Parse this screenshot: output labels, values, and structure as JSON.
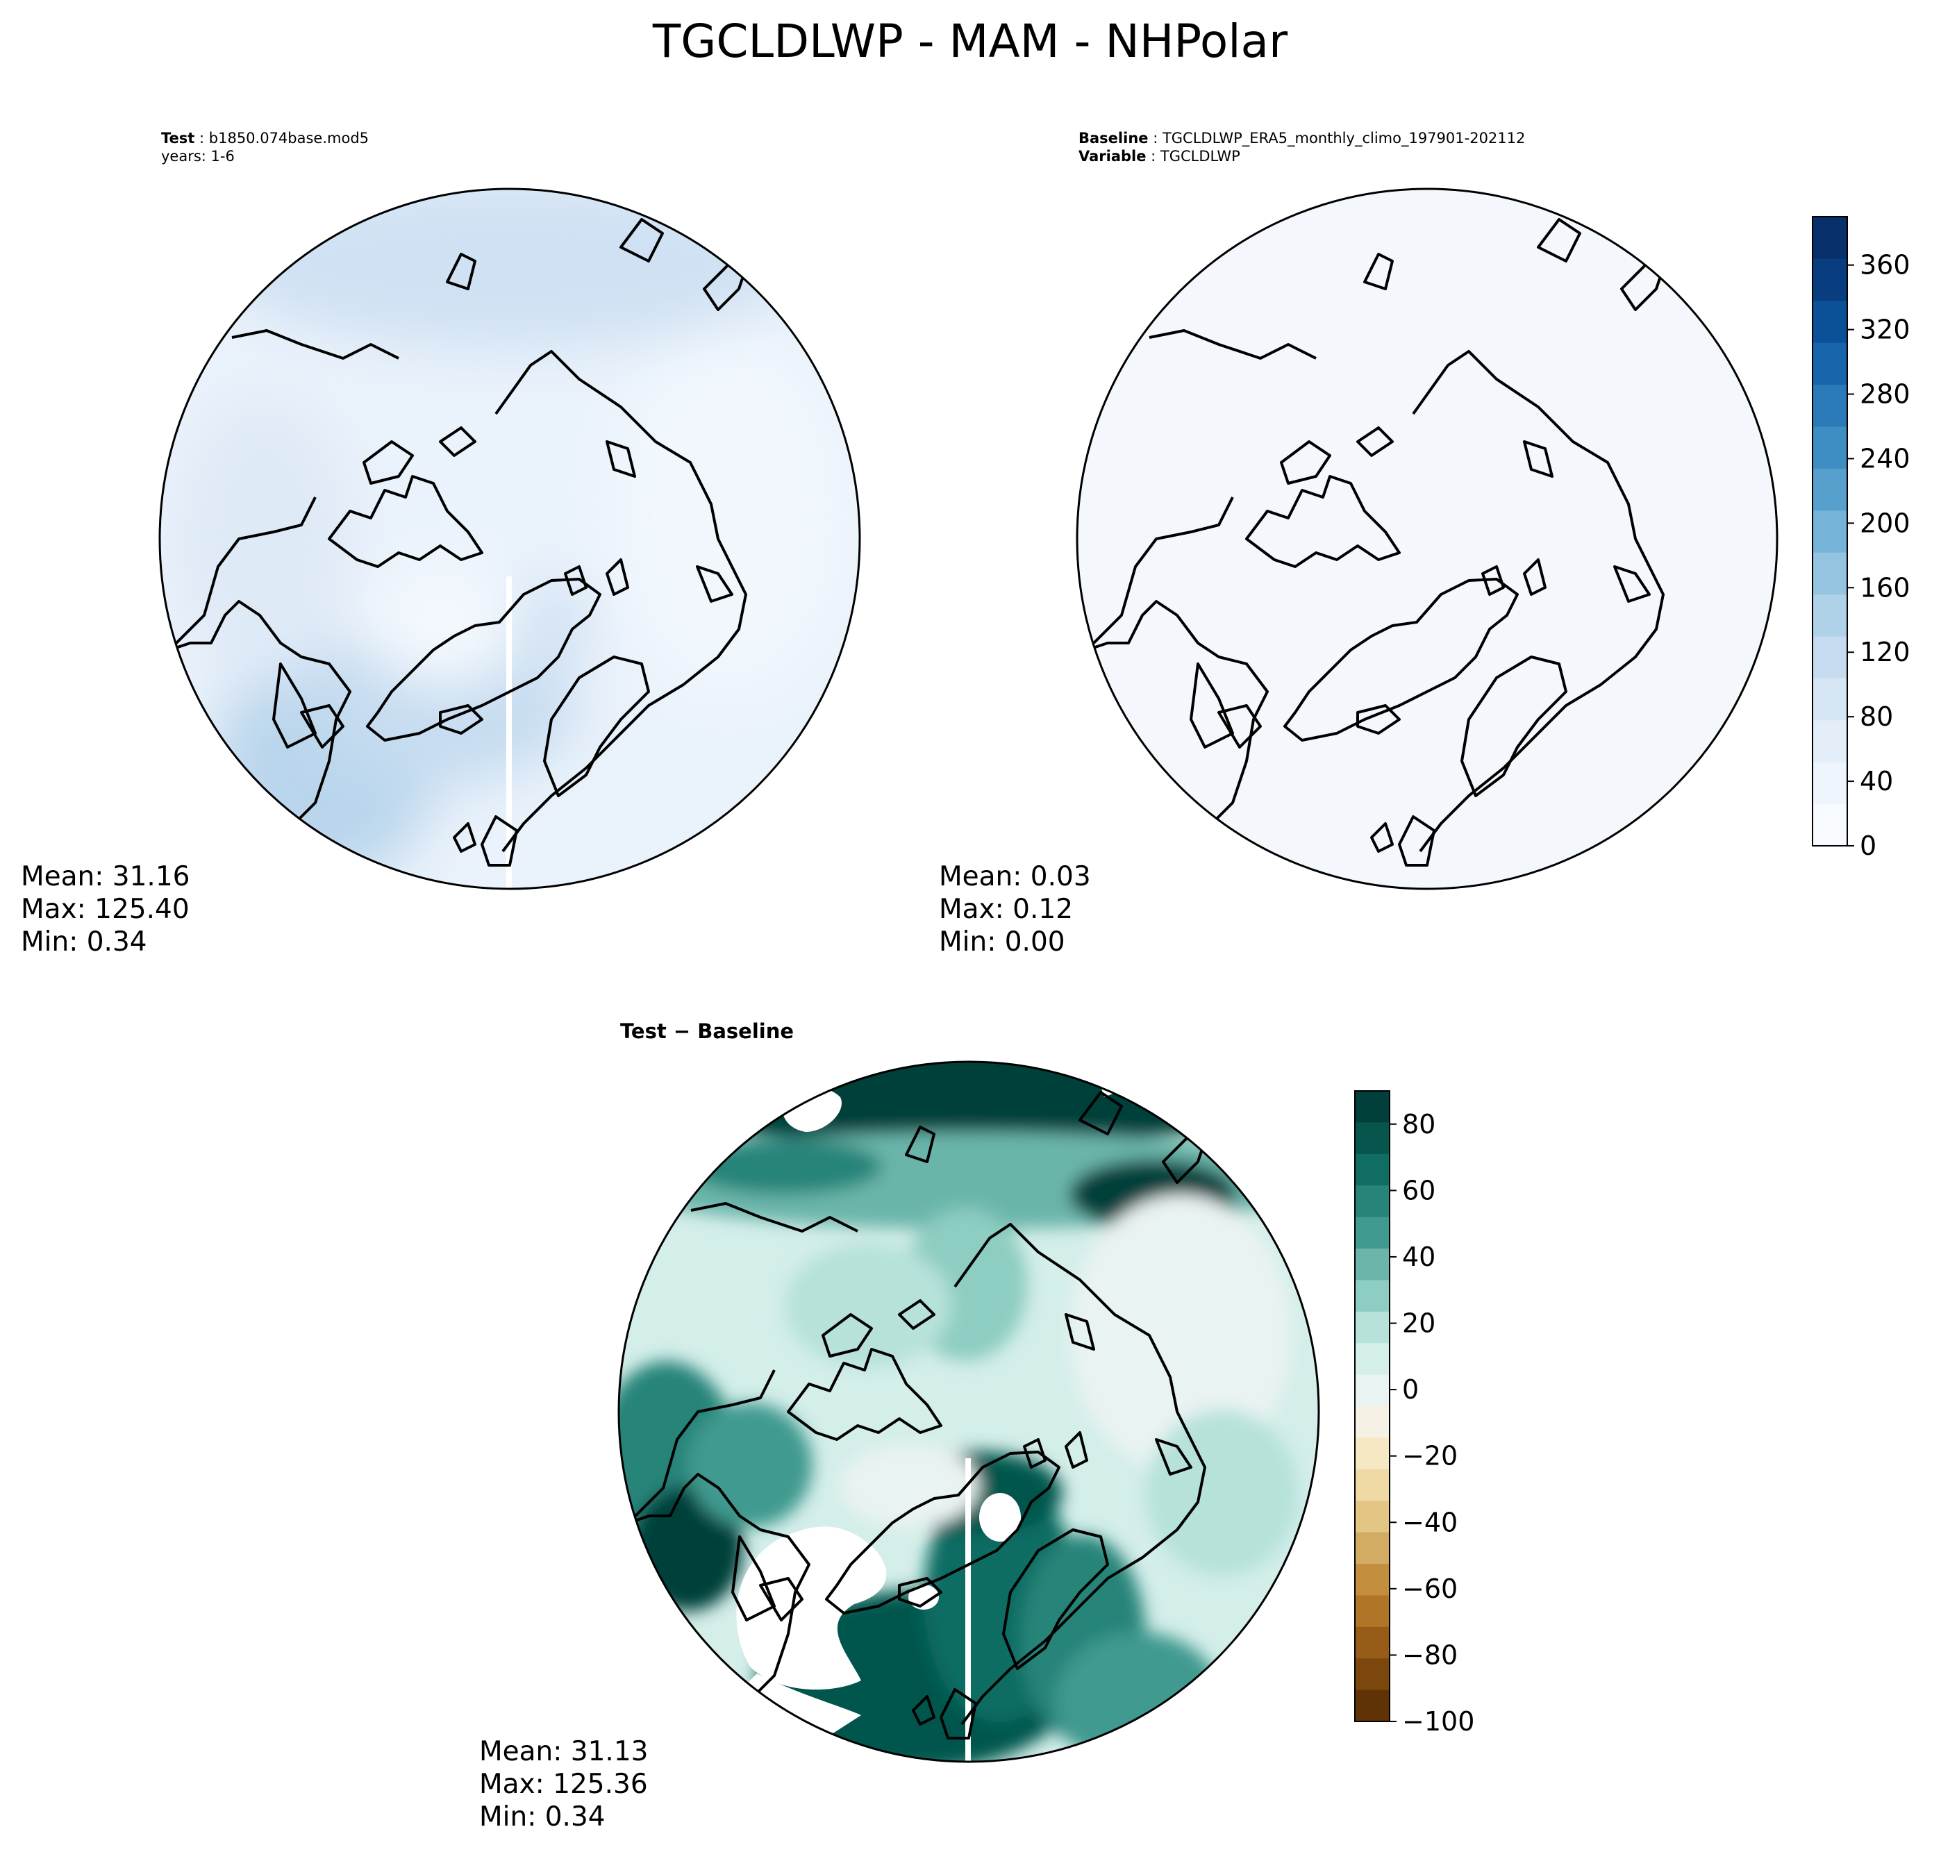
{
  "figure": {
    "title": "TGCLDLWP - MAM - NHPolar"
  },
  "panels": {
    "test": {
      "label_bold": "Test",
      "label_value": "b1850.074base.mod5",
      "years": "years: 1-6",
      "stats": {
        "mean": "Mean: 31.16",
        "max": "Max: 125.40",
        "min": "Min:  0.34"
      }
    },
    "baseline": {
      "label_bold": "Baseline",
      "label_value": "TGCLDLWP_ERA5_monthly_climo_197901-202112",
      "variable_bold": "Variable",
      "variable_value": "TGCLDLWP",
      "stats": {
        "mean": "Mean:  0.03",
        "max": "Max:  0.12",
        "min": "Min:  0.00"
      }
    },
    "diff": {
      "label": "Test − Baseline",
      "stats": {
        "mean": "Mean: 31.13",
        "max": "Max: 125.36",
        "min": "Min:  0.34"
      }
    }
  },
  "colorbars": {
    "blues": {
      "ticks": [
        "0",
        "40",
        "80",
        "120",
        "160",
        "200",
        "240",
        "280",
        "320",
        "360"
      ],
      "colors": [
        "#f7fbff",
        "#eef5fc",
        "#e3eef9",
        "#d6e6f4",
        "#c6dbef",
        "#b0d2e8",
        "#94c4df",
        "#75b4d8",
        "#57a0ce",
        "#3e8ec4",
        "#2a7ab9",
        "#1865ac",
        "#0b5198",
        "#083d7f",
        "#08306b"
      ]
    },
    "diverging": {
      "ticks": [
        "80",
        "60",
        "40",
        "20",
        "0",
        "−20",
        "−40",
        "−60",
        "−80",
        "−100"
      ],
      "colors": [
        "#01403a",
        "#06564d",
        "#0f6d64",
        "#278479",
        "#419a8f",
        "#6bb5aa",
        "#8ecdc1",
        "#b6e2da",
        "#d4eeea",
        "#e9f3f2",
        "#f5f1e4",
        "#f6e8c3",
        "#efd9a4",
        "#e3c584",
        "#d3ac63",
        "#c38f3e",
        "#b07526",
        "#975c17",
        "#7c470c",
        "#5f3305"
      ]
    }
  }
}
